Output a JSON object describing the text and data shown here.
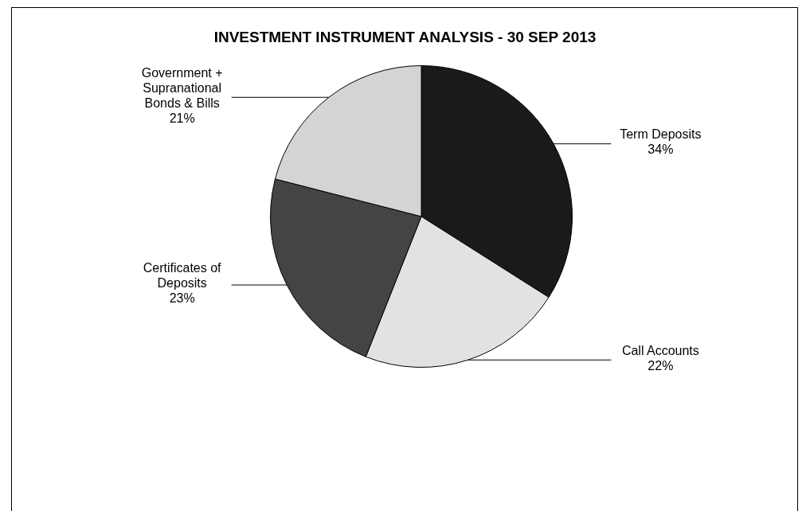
{
  "chart_data": {
    "type": "pie",
    "title": "INVESTMENT INSTRUMENT ANALYSIS - 30 SEP 2013",
    "categories": [
      "Term Deposits",
      "Call Accounts",
      "Certificates of Deposits",
      "Government + Supranational Bonds & Bills"
    ],
    "values": [
      34,
      22,
      23,
      21
    ],
    "value_labels": [
      "34%",
      "22%",
      "23%",
      "21%"
    ],
    "colors": [
      "#1a1a1a",
      "#e2e2e2",
      "#444444",
      "#d4d4d4"
    ],
    "legend": false
  }
}
